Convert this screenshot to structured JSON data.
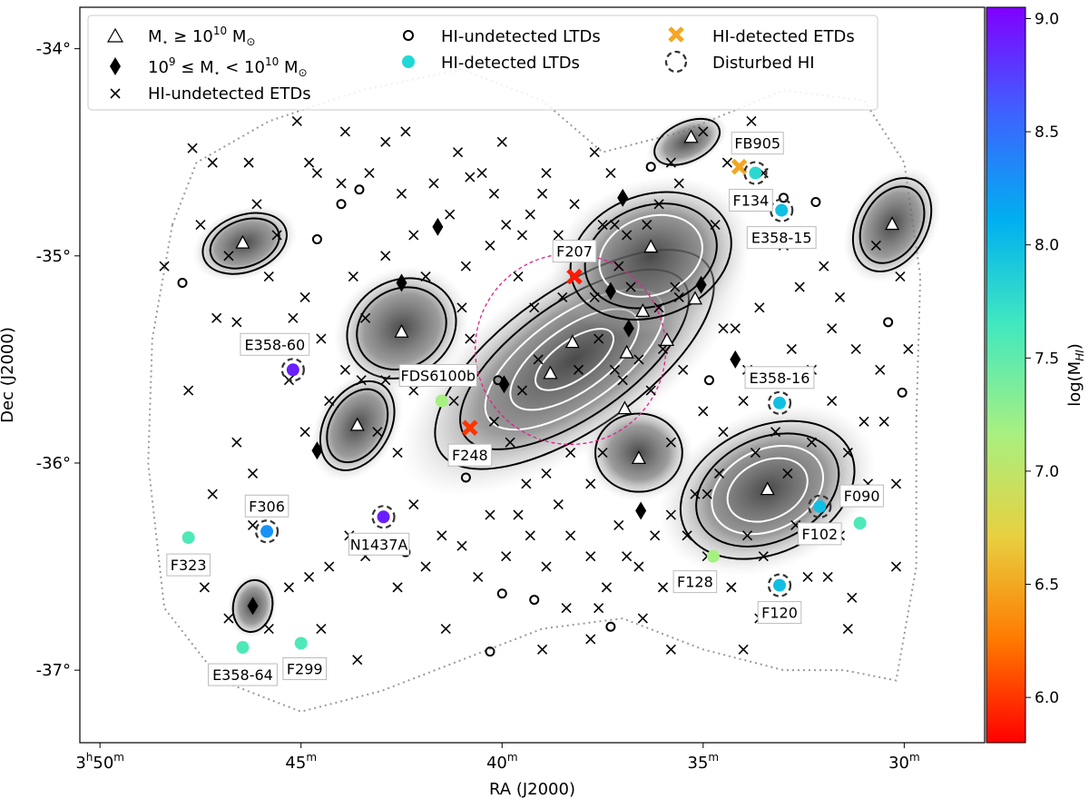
{
  "chart_data": {
    "type": "scatter",
    "title": "",
    "xlabel": "RA (J2000)",
    "ylabel": "Dec (J2000)",
    "xlim_min": [
      50.5,
      28.0
    ],
    "ylim_deg": [
      -37.35,
      -33.8
    ],
    "x_ticks": [
      {
        "min": 50,
        "label_h": "3",
        "label_m": "50",
        "first": true
      },
      {
        "min": 45,
        "label_m": "45"
      },
      {
        "min": 40,
        "label_m": "40"
      },
      {
        "min": 35,
        "label_m": "35"
      },
      {
        "min": 30,
        "label_m": "30"
      }
    ],
    "y_ticks": [
      {
        "deg": -34,
        "label": "-34°"
      },
      {
        "deg": -35,
        "label": "-35°"
      },
      {
        "deg": -36,
        "label": "-36°"
      },
      {
        "deg": -37,
        "label": "-37°"
      }
    ],
    "legend": {
      "placement": "top-left",
      "entries": [
        {
          "marker": "triangle",
          "label": "M⋆ ≥ 10^10 M⊙",
          "parts": [
            "M",
            "⋆",
            " ≥ 10",
            "10",
            " M",
            "⊙"
          ]
        },
        {
          "marker": "diamond",
          "label": "10^9 ≤ M⋆ < 10^10 M⊙",
          "parts": [
            "10",
            "9",
            " ≤ M",
            "⋆",
            " < 10",
            "10",
            " M",
            "⊙"
          ]
        },
        {
          "marker": "cross",
          "label": "HI-undetected ETDs"
        },
        {
          "marker": "ring",
          "label": "HI-undetected LTDs"
        },
        {
          "marker": "cyan-dot",
          "label": "HI-detected LTDs"
        },
        {
          "marker": "orange-x",
          "label": "HI-detected ETDs"
        },
        {
          "marker": "dashed-ring",
          "label": "Disturbed HI"
        }
      ]
    },
    "colorbar": {
      "label": "log(M_HI)",
      "label_parts": [
        "log(M",
        "HI",
        ")"
      ],
      "range": [
        5.8,
        9.05
      ],
      "ticks": [
        {
          "value": 6.0,
          "label": "6.0"
        },
        {
          "value": 6.5,
          "label": "6.5"
        },
        {
          "value": 7.0,
          "label": "7.0"
        },
        {
          "value": 7.5,
          "label": "7.5"
        },
        {
          "value": 8.0,
          "label": "8.0"
        },
        {
          "value": 8.5,
          "label": "8.5"
        },
        {
          "value": 9.0,
          "label": "9.0"
        }
      ],
      "colors": [
        "#ff0000",
        "#ff7a00",
        "#e8d040",
        "#a8f080",
        "#40e8c0",
        "#00b0f0",
        "#3f60ff",
        "#8000ff"
      ]
    },
    "hi_detected": [
      {
        "name": "F207",
        "ra": 38.2,
        "dec": -35.1,
        "logM": 5.9,
        "type": "ETD",
        "disturbed": false
      },
      {
        "name": "F248",
        "ra": 40.8,
        "dec": -35.83,
        "logM": 6.0,
        "type": "ETD",
        "disturbed": false
      },
      {
        "name": "FB905",
        "ra": 34.1,
        "dec": -34.57,
        "logM": 6.5,
        "type": "ETD",
        "disturbed": false
      },
      {
        "name": "F134",
        "ra": 33.7,
        "dec": -34.6,
        "logM": 7.8,
        "type": "LTD",
        "disturbed": true
      },
      {
        "name": "E358-15",
        "ra": 33.05,
        "dec": -34.78,
        "logM": 8.0,
        "type": "LTD",
        "disturbed": true
      },
      {
        "name": "E358-60",
        "ra": 45.2,
        "dec": -35.55,
        "logM": 8.9,
        "type": "LTD",
        "disturbed": true
      },
      {
        "name": "FDS6100b",
        "ra": 41.5,
        "dec": -35.7,
        "logM": 7.2,
        "type": "LTD",
        "disturbed": false
      },
      {
        "name": "E358-16",
        "ra": 33.1,
        "dec": -35.71,
        "logM": 8.0,
        "type": "LTD",
        "disturbed": true
      },
      {
        "name": "F306",
        "ra": 45.85,
        "dec": -36.33,
        "logM": 8.3,
        "type": "LTD",
        "disturbed": true
      },
      {
        "name": "N1437A",
        "ra": 42.95,
        "dec": -36.26,
        "logM": 8.9,
        "type": "LTD",
        "disturbed": true
      },
      {
        "name": "F102",
        "ra": 32.1,
        "dec": -36.21,
        "logM": 8.0,
        "type": "LTD",
        "disturbed": true
      },
      {
        "name": "F090",
        "ra": 31.1,
        "dec": -36.29,
        "logM": 7.6,
        "type": "LTD",
        "disturbed": false
      },
      {
        "name": "F323",
        "ra": 47.8,
        "dec": -36.36,
        "logM": 7.6,
        "type": "LTD",
        "disturbed": false
      },
      {
        "name": "F128",
        "ra": 34.75,
        "dec": -36.45,
        "logM": 7.2,
        "type": "LTD",
        "disturbed": false
      },
      {
        "name": "F120",
        "ra": 33.1,
        "dec": -36.59,
        "logM": 8.0,
        "type": "LTD",
        "disturbed": true
      },
      {
        "name": "E358-64",
        "ra": 46.45,
        "dec": -36.89,
        "logM": 7.6,
        "type": "LTD",
        "disturbed": false
      },
      {
        "name": "F299",
        "ra": 45.0,
        "dec": -36.87,
        "logM": 7.6,
        "type": "LTD",
        "disturbed": false
      }
    ],
    "massive_galaxies": [
      [
        46.45,
        -34.94
      ],
      [
        42.5,
        -35.37
      ],
      [
        43.6,
        -35.82
      ],
      [
        38.25,
        -35.42
      ],
      [
        38.8,
        -35.57
      ],
      [
        36.3,
        -34.96
      ],
      [
        36.9,
        -35.47
      ],
      [
        36.5,
        -35.27
      ],
      [
        35.9,
        -35.41
      ],
      [
        35.2,
        -35.21
      ],
      [
        36.95,
        -35.74
      ],
      [
        36.6,
        -35.98
      ],
      [
        35.3,
        -34.43
      ],
      [
        33.4,
        -36.13
      ],
      [
        30.3,
        -34.85
      ]
    ],
    "dwarf_galaxies": [
      [
        42.5,
        -35.13
      ],
      [
        41.6,
        -34.86
      ],
      [
        39.95,
        -35.62
      ],
      [
        37.0,
        -34.72
      ],
      [
        37.3,
        -35.17
      ],
      [
        36.85,
        -35.35
      ],
      [
        35.05,
        -35.14
      ],
      [
        34.2,
        -35.5
      ],
      [
        44.6,
        -35.94
      ],
      [
        46.2,
        -36.69
      ],
      [
        36.55,
        -36.23
      ]
    ],
    "undetected_ltds": [
      [
        47.95,
        -35.13
      ],
      [
        44.6,
        -34.92
      ],
      [
        44.0,
        -34.75
      ],
      [
        43.55,
        -34.68
      ],
      [
        40.9,
        -36.07
      ],
      [
        40.1,
        -35.6
      ],
      [
        42.4,
        -36.43
      ],
      [
        40.0,
        -36.63
      ],
      [
        39.2,
        -36.66
      ],
      [
        37.3,
        -36.79
      ],
      [
        40.3,
        -36.91
      ],
      [
        36.3,
        -34.57
      ],
      [
        33.0,
        -34.72
      ],
      [
        32.2,
        -34.74
      ],
      [
        34.85,
        -35.6
      ],
      [
        30.4,
        -35.32
      ],
      [
        30.05,
        -35.66
      ]
    ],
    "contour_regions": [
      {
        "name": "central-cluster",
        "ra": 38.2,
        "dec": -35.5,
        "levels": 5
      },
      {
        "name": "north-east-lobe",
        "ra": 36.3,
        "dec": -35.0,
        "levels": 3
      },
      {
        "name": "south-lobe",
        "ra": 36.6,
        "dec": -35.95,
        "levels": 1
      },
      {
        "name": "west-lobe-1",
        "ra": 46.4,
        "dec": -34.94,
        "levels": 2
      },
      {
        "name": "west-lobe-2",
        "ra": 42.5,
        "dec": -35.35,
        "levels": 2
      },
      {
        "name": "west-lobe-3",
        "ra": 43.6,
        "dec": -35.82,
        "levels": 2
      },
      {
        "name": "south-east-lobe",
        "ra": 33.4,
        "dec": -36.13,
        "levels": 4
      },
      {
        "name": "east-lobe",
        "ra": 30.3,
        "dec": -34.85,
        "levels": 2
      },
      {
        "name": "north-lobe",
        "ra": 35.4,
        "dec": -34.45,
        "levels": 1
      },
      {
        "name": "southwest-lobe",
        "ra": 46.2,
        "dec": -36.69,
        "levels": 1
      }
    ],
    "virial_circle": {
      "ra": 38.3,
      "dec": -35.45,
      "radius_deg": 0.46
    },
    "undetected_etds": [
      [
        48.4,
        -35.05
      ],
      [
        47.7,
        -34.48
      ],
      [
        47.5,
        -34.85
      ],
      [
        47.2,
        -34.55
      ],
      [
        47.1,
        -35.3
      ],
      [
        46.6,
        -35.32
      ],
      [
        46.8,
        -35.0
      ],
      [
        47.8,
        -35.65
      ],
      [
        46.3,
        -34.55
      ],
      [
        45.6,
        -34.9
      ],
      [
        45.8,
        -35.1
      ],
      [
        45.2,
        -35.3
      ],
      [
        44.6,
        -34.6
      ],
      [
        44.0,
        -34.65
      ],
      [
        43.9,
        -34.4
      ],
      [
        43.3,
        -34.6
      ],
      [
        42.9,
        -34.45
      ],
      [
        42.5,
        -34.7
      ],
      [
        42.2,
        -34.9
      ],
      [
        41.7,
        -34.65
      ],
      [
        41.3,
        -34.8
      ],
      [
        41.1,
        -34.5
      ],
      [
        40.8,
        -34.62
      ],
      [
        40.2,
        -34.7
      ],
      [
        39.9,
        -34.85
      ],
      [
        39.5,
        -34.9
      ],
      [
        39.0,
        -34.7
      ],
      [
        38.6,
        -34.9
      ],
      [
        38.2,
        -34.75
      ],
      [
        37.7,
        -34.5
      ],
      [
        37.5,
        -34.85
      ],
      [
        42.4,
        -34.4
      ],
      [
        40.5,
        -34.6
      ],
      [
        39.6,
        -35.1
      ],
      [
        39.2,
        -35.25
      ],
      [
        38.5,
        -35.2
      ],
      [
        37.7,
        -35.2
      ],
      [
        37.1,
        -35.05
      ],
      [
        36.1,
        -34.75
      ],
      [
        35.6,
        -34.65
      ],
      [
        35.0,
        -34.4
      ],
      [
        34.4,
        -34.55
      ],
      [
        33.8,
        -34.35
      ],
      [
        33.5,
        -34.6
      ],
      [
        33.0,
        -34.95
      ],
      [
        32.6,
        -35.15
      ],
      [
        32.0,
        -35.05
      ],
      [
        31.6,
        -35.2
      ],
      [
        30.7,
        -34.95
      ],
      [
        30.1,
        -35.1
      ],
      [
        29.9,
        -35.45
      ],
      [
        30.6,
        -35.55
      ],
      [
        31.2,
        -35.45
      ],
      [
        31.8,
        -35.35
      ],
      [
        32.8,
        -35.45
      ],
      [
        33.6,
        -35.25
      ],
      [
        34.2,
        -35.35
      ],
      [
        35.5,
        -35.55
      ],
      [
        35.0,
        -35.75
      ],
      [
        34.5,
        -35.85
      ],
      [
        34.0,
        -35.7
      ],
      [
        33.7,
        -35.95
      ],
      [
        33.2,
        -35.85
      ],
      [
        32.3,
        -35.9
      ],
      [
        31.8,
        -35.7
      ],
      [
        31.4,
        -35.95
      ],
      [
        30.9,
        -36.1
      ],
      [
        30.2,
        -36.1
      ],
      [
        30.2,
        -36.5
      ],
      [
        31.6,
        -36.35
      ],
      [
        32.7,
        -36.3
      ],
      [
        33.9,
        -36.35
      ],
      [
        34.6,
        -36.05
      ],
      [
        35.2,
        -36.15
      ],
      [
        35.4,
        -36.35
      ],
      [
        34.9,
        -36.45
      ],
      [
        34.3,
        -36.6
      ],
      [
        33.5,
        -36.45
      ],
      [
        32.4,
        -36.55
      ],
      [
        35.8,
        -36.25
      ],
      [
        36.2,
        -36.35
      ],
      [
        36.0,
        -36.6
      ],
      [
        36.6,
        -36.5
      ],
      [
        37.1,
        -36.3
      ],
      [
        37.4,
        -36.6
      ],
      [
        37.8,
        -36.45
      ],
      [
        38.3,
        -36.35
      ],
      [
        38.6,
        -36.2
      ],
      [
        38.9,
        -36.5
      ],
      [
        39.3,
        -36.35
      ],
      [
        39.6,
        -36.25
      ],
      [
        39.9,
        -36.45
      ],
      [
        40.3,
        -36.25
      ],
      [
        40.6,
        -36.55
      ],
      [
        41.0,
        -36.4
      ],
      [
        41.5,
        -36.35
      ],
      [
        41.9,
        -36.5
      ],
      [
        42.2,
        -36.2
      ],
      [
        42.6,
        -36.6
      ],
      [
        43.4,
        -36.45
      ],
      [
        43.8,
        -36.35
      ],
      [
        44.3,
        -36.5
      ],
      [
        44.8,
        -36.55
      ],
      [
        45.3,
        -36.6
      ],
      [
        45.6,
        -36.2
      ],
      [
        44.9,
        -35.85
      ],
      [
        45.3,
        -35.6
      ],
      [
        45.8,
        -35.45
      ],
      [
        44.3,
        -35.7
      ],
      [
        43.9,
        -35.55
      ],
      [
        43.4,
        -35.3
      ],
      [
        43.7,
        -35.1
      ],
      [
        42.9,
        -35.6
      ],
      [
        42.2,
        -35.65
      ],
      [
        41.6,
        -35.55
      ],
      [
        41.2,
        -35.7
      ],
      [
        40.8,
        -35.4
      ],
      [
        40.5,
        -35.95
      ],
      [
        40.2,
        -35.8
      ],
      [
        39.8,
        -35.9
      ],
      [
        39.4,
        -36.1
      ],
      [
        38.9,
        -36.05
      ],
      [
        38.3,
        -35.95
      ],
      [
        37.8,
        -36.1
      ],
      [
        37.5,
        -35.95
      ],
      [
        37.0,
        -35.6
      ],
      [
        36.6,
        -35.5
      ],
      [
        36.3,
        -35.65
      ],
      [
        35.8,
        -35.9
      ],
      [
        38.1,
        -35.55
      ],
      [
        37.6,
        -35.4
      ],
      [
        37.2,
        -35.55
      ],
      [
        39.5,
        -35.65
      ],
      [
        39.1,
        -35.5
      ],
      [
        36.1,
        -35.25
      ],
      [
        35.7,
        -35.15
      ],
      [
        36.8,
        -35.15
      ],
      [
        36.0,
        -35.45
      ],
      [
        45.8,
        -36.8
      ],
      [
        46.8,
        -36.75
      ],
      [
        47.4,
        -36.6
      ],
      [
        47.2,
        -36.15
      ],
      [
        46.2,
        -36.3
      ],
      [
        44.5,
        -36.8
      ],
      [
        43.6,
        -36.95
      ],
      [
        41.4,
        -36.8
      ],
      [
        39.0,
        -36.9
      ],
      [
        38.4,
        -36.7
      ],
      [
        37.8,
        -36.85
      ],
      [
        36.5,
        -36.75
      ],
      [
        35.8,
        -36.9
      ],
      [
        32.8,
        -36.7
      ],
      [
        31.4,
        -36.8
      ],
      [
        45.1,
        -34.35
      ],
      [
        44.8,
        -34.55
      ],
      [
        46.1,
        -34.75
      ],
      [
        35.8,
        -34.55
      ],
      [
        37.3,
        -34.6
      ],
      [
        34.7,
        -34.85
      ],
      [
        36.9,
        -34.9
      ],
      [
        38.9,
        -34.6
      ],
      [
        40.0,
        -34.45
      ],
      [
        41.0,
        -35.25
      ],
      [
        41.9,
        -35.1
      ],
      [
        42.9,
        -35.0
      ],
      [
        44.9,
        -35.2
      ],
      [
        43.1,
        -35.85
      ],
      [
        42.6,
        -35.95
      ],
      [
        46.6,
        -35.9
      ],
      [
        46.2,
        -36.05
      ],
      [
        31.3,
        -36.65
      ],
      [
        31.9,
        -36.55
      ],
      [
        34.0,
        -36.9
      ],
      [
        33.6,
        -36.75
      ],
      [
        34.9,
        -36.15
      ],
      [
        32.9,
        -36.05
      ],
      [
        32.3,
        -35.55
      ],
      [
        30.5,
        -35.8
      ],
      [
        31.0,
        -35.8
      ],
      [
        34.5,
        -35.35
      ],
      [
        33.9,
        -35.55
      ],
      [
        35.6,
        -35.2
      ],
      [
        36.4,
        -34.85
      ],
      [
        37.2,
        -34.85
      ],
      [
        39.3,
        -34.8
      ],
      [
        40.3,
        -34.95
      ],
      [
        40.9,
        -35.05
      ],
      [
        41.3,
        -35.6
      ],
      [
        43.5,
        -35.6
      ],
      [
        44.5,
        -35.4
      ],
      [
        36.9,
        -36.45
      ],
      [
        37.6,
        -36.7
      ]
    ]
  }
}
